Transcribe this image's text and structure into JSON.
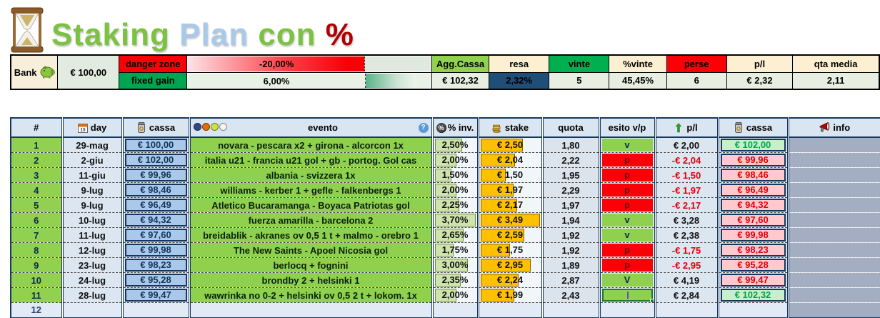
{
  "title": {
    "word1": "Staking",
    "word2": "Plan",
    "word3": "con",
    "word4": "%"
  },
  "bank": {
    "label": "Bank",
    "value": "€ 100,00"
  },
  "zones": {
    "danger_label": "danger zone",
    "danger_value": "-20,00%",
    "gain_label": "fixed gain",
    "gain_value": "6,00%"
  },
  "stats": {
    "agg_cassa_label": "Agg.Cassa",
    "agg_cassa_value": "€ 102,32",
    "resa_label": "resa",
    "resa_value": "2,32%",
    "vinte_label": "vinte",
    "vinte_value": "5",
    "pvinte_label": "%vinte",
    "pvinte_value": "45,45%",
    "perse_label": "perse",
    "perse_value": "6",
    "pl_label": "p/l",
    "pl_value": "€ 2,32",
    "qta_label": "qta media",
    "qta_value": "2,11"
  },
  "table": {
    "headers": {
      "num": "#",
      "day": "day",
      "cassa": "cassa",
      "evento": "evento",
      "inv": "% inv.",
      "stake": "stake",
      "quota": "quota",
      "esito": "esito v/p",
      "pl": "p/l",
      "cassa2": "cassa",
      "info": "info"
    },
    "rows": [
      {
        "num": "1",
        "day": "29-mag",
        "cassa_start": "€ 100,00",
        "evento": "novara - pescara x2 + girona - alcorcon 1x",
        "inv": "2,50%",
        "inv_val": 2.5,
        "stake": "€ 2,50",
        "stake_val": 2.5,
        "quota": "1,80",
        "esito": "v",
        "esito_state": "win",
        "pl": "€ 2,00",
        "pl_neg": false,
        "cassa_end": "€ 102,00",
        "cassa_gain": true
      },
      {
        "num": "2",
        "day": "2-giu",
        "cassa_start": "€ 102,00",
        "evento": "italia u21 - francia u21 gol +  gb - portog. Gol cas",
        "inv": "2,00%",
        "inv_val": 2.0,
        "stake": "€ 2,04",
        "stake_val": 2.04,
        "quota": "2,22",
        "esito": "p",
        "esito_state": "loss",
        "pl": "-€ 2,04",
        "pl_neg": true,
        "cassa_end": "€ 99,96",
        "cassa_gain": false
      },
      {
        "num": "3",
        "day": "11-giu",
        "cassa_start": "€ 99,96",
        "evento": "albania - svizzera 1x",
        "inv": "1,50%",
        "inv_val": 1.5,
        "stake": "€ 1,50",
        "stake_val": 1.5,
        "quota": "1,95",
        "esito": "p",
        "esito_state": "loss",
        "pl": "-€ 1,50",
        "pl_neg": true,
        "cassa_end": "€ 98,46",
        "cassa_gain": false
      },
      {
        "num": "4",
        "day": "9-lug",
        "cassa_start": "€ 98,46",
        "evento": "williams - kerber 1 + gefle - falkenbergs 1",
        "inv": "2,00%",
        "inv_val": 2.0,
        "stake": "€ 1,97",
        "stake_val": 1.97,
        "quota": "2,29",
        "esito": "p",
        "esito_state": "loss",
        "pl": "-€ 1,97",
        "pl_neg": true,
        "cassa_end": "€ 96,49",
        "cassa_gain": false
      },
      {
        "num": "5",
        "day": "9-lug",
        "cassa_start": "€ 96,49",
        "evento": "Atletico Bucaramanga - Boyaca Patriotas gol",
        "inv": "2,25%",
        "inv_val": 2.25,
        "stake": "€ 2,17",
        "stake_val": 2.17,
        "quota": "1,97",
        "esito": "p",
        "esito_state": "loss",
        "pl": "-€ 2,17",
        "pl_neg": true,
        "cassa_end": "€ 94,32",
        "cassa_gain": false
      },
      {
        "num": "6",
        "day": "10-lug",
        "cassa_start": "€ 94,32",
        "evento": "fuerza amarilla  - barcelona 2",
        "inv": "3,70%",
        "inv_val": 3.7,
        "stake": "€ 3,49",
        "stake_val": 3.49,
        "quota": "1,94",
        "esito": "v",
        "esito_state": "win",
        "pl": "€ 3,28",
        "pl_neg": false,
        "cassa_end": "€ 97,60",
        "cassa_gain": false
      },
      {
        "num": "7",
        "day": "11-lug",
        "cassa_start": "€ 97,60",
        "evento": "breidablik - akranes ov 0,5 1 t +  malmo - orebro 1",
        "inv": "2,65%",
        "inv_val": 2.65,
        "stake": "€ 2,59",
        "stake_val": 2.59,
        "quota": "1,92",
        "esito": "v",
        "esito_state": "win",
        "pl": "€ 2,38",
        "pl_neg": false,
        "cassa_end": "€ 99,98",
        "cassa_gain": false
      },
      {
        "num": "8",
        "day": "12-lug",
        "cassa_start": "€ 99,98",
        "evento": "The New Saints - Apoel Nicosia gol",
        "inv": "1,75%",
        "inv_val": 1.75,
        "stake": "€ 1,75",
        "stake_val": 1.75,
        "quota": "1,92",
        "esito": "p",
        "esito_state": "loss",
        "pl": "-€ 1,75",
        "pl_neg": true,
        "cassa_end": "€ 98,23",
        "cassa_gain": false
      },
      {
        "num": "9",
        "day": "23-lug",
        "cassa_start": "€ 98,23",
        "evento": "berlocq + fognini",
        "inv": "3,00%",
        "inv_val": 3.0,
        "stake": "€ 2,95",
        "stake_val": 2.95,
        "quota": "1,89",
        "esito": "p",
        "esito_state": "loss",
        "pl": "-€ 2,95",
        "pl_neg": true,
        "cassa_end": "€ 95,28",
        "cassa_gain": false
      },
      {
        "num": "10",
        "day": "24-lug",
        "cassa_start": "€ 95,28",
        "evento": "brondby 2 + helsinki 1",
        "inv": "2,35%",
        "inv_val": 2.35,
        "stake": "€ 2,24",
        "stake_val": 2.24,
        "quota": "2,87",
        "esito": "V",
        "esito_state": "win",
        "pl": "€ 4,19",
        "pl_neg": false,
        "cassa_end": "€ 99,47",
        "cassa_gain": false
      },
      {
        "num": "11",
        "day": "28-lug",
        "cassa_start": "€ 99,47",
        "evento": "wawrinka no 0-2 + helsinki ov 0,5 2 t + lokom. 1x",
        "inv": "2,00%",
        "inv_val": 2.0,
        "stake": "€ 1,99",
        "stake_val": 1.99,
        "quota": "2,43",
        "esito": "",
        "esito_state": "selected",
        "pl": "€ 2,84",
        "pl_neg": false,
        "cassa_end": "€ 102,32",
        "cassa_gain": true
      }
    ],
    "partial_row_num": "12",
    "bar_scale": {
      "inv_max": 3.7,
      "stake_max": 3.49
    }
  },
  "colors": {
    "row_green": "#92d050",
    "loss_red": "#fb0007",
    "navy_border": "#17375e",
    "stake_bar": "#ffc000",
    "inv_bar": "#cfe3ac",
    "resa_bg": "#1f4e79",
    "gain_cell": "#c7efce",
    "loss_cell": "#ffc9ce"
  }
}
